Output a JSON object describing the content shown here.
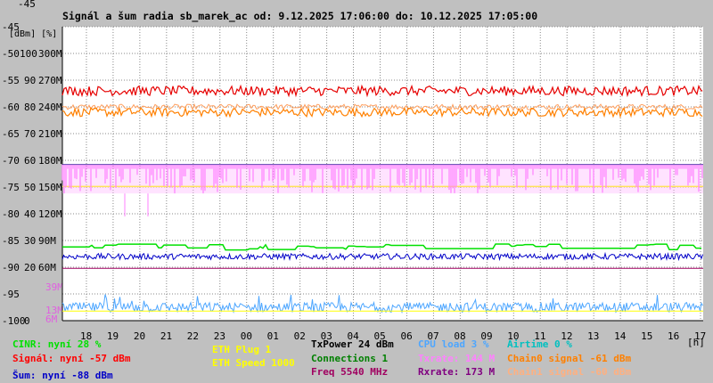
{
  "chart_data": {
    "type": "line",
    "title": "Signál a šum radia sb_marek_ac od: 9.12.2025 17:06:00 do: 10.12.2025 17:05:00",
    "y_unit_label": "[dBm] [%]",
    "x_unit_label": "[h]",
    "x_ticks": [
      "18",
      "19",
      "20",
      "21",
      "22",
      "23",
      "00",
      "01",
      "02",
      "03",
      "04",
      "05",
      "06",
      "07",
      "08",
      "09",
      "10",
      "11",
      "12",
      "13",
      "14",
      "15",
      "16",
      "17"
    ],
    "x_range_hours": [
      17.1,
      41.1
    ],
    "y_axis": {
      "dbm_ticks": [
        -45,
        -50,
        -55,
        -60,
        -65,
        -70,
        -75,
        -80,
        -85,
        -90,
        -95,
        -100
      ],
      "percent_ticks": [
        "",
        "100",
        "90",
        "80",
        "70",
        "60",
        "50",
        "40",
        "30",
        "20",
        "",
        "0"
      ],
      "rate_ticks": [
        "",
        "300M",
        "270M",
        "240M",
        "210M",
        "180M",
        "150M",
        "120M",
        "90M",
        "60M",
        "",
        ""
      ],
      "ylim_dbm": [
        -100,
        -45
      ]
    },
    "rate_small_ticks": [
      "39M",
      "13M",
      "6M"
    ],
    "series": [
      {
        "name": "Signál",
        "key": "signal",
        "color": "#e60000",
        "base": -57,
        "spread": 1.2
      },
      {
        "name": "Chain0 signal",
        "key": "chain0",
        "color": "#ff8000",
        "base": -61,
        "spread": 1.0
      },
      {
        "name": "Chain1 signal",
        "key": "chain1",
        "color": "#ffa060",
        "base": -60,
        "spread": 0.8
      },
      {
        "name": "Šum",
        "key": "noise",
        "color": "#0000c8",
        "base": -88,
        "spread": 0.6
      },
      {
        "name": "CINR",
        "key": "cinr",
        "color": "#00e000",
        "base": 28,
        "unit": "percent"
      },
      {
        "name": "Txrate",
        "key": "txrate",
        "color": "#ff80ff",
        "base": 144,
        "unit": "Mbps"
      },
      {
        "name": "Rxrate",
        "key": "rxrate",
        "color": "#800080",
        "base": 173,
        "unit": "Mbps"
      },
      {
        "name": "CPU load",
        "key": "cpu",
        "color": "#4da6ff",
        "base": 3,
        "unit": "percent"
      },
      {
        "name": "ETH Speed",
        "key": "ethspeed",
        "color": "#ffff00",
        "base": 1000,
        "unit": "Mbps"
      }
    ]
  },
  "legend": {
    "cinr": "CINR: nyní 28 %",
    "signal": "Signál: nyní -57 dBm",
    "noise": "Šum: nyní -88 dBm",
    "eth_plug": "ETH Plug 1",
    "eth_speed": "ETH Speed 1000",
    "txpower": "TxPower 24 dBm",
    "connections": "Connections 1",
    "freq": "Freq 5540 MHz",
    "cpu": "CPU load 3 %",
    "txrate": "Txrate: 144 M",
    "rxrate": "Rxrate: 173 M",
    "airtime": "Airtime 0 %",
    "chain0": "Chain0 signal -61 dBm",
    "chain1": "Chain1 signal -60 dBm"
  },
  "colors": {
    "cinr": "#00e000",
    "signal": "#ff0000",
    "noise": "#0000c8",
    "eth": "#ffff00",
    "txpower": "#000000",
    "connections": "#008000",
    "freq": "#a00060",
    "cpu": "#4da6ff",
    "txrate": "#ff80ff",
    "rxrate": "#800080",
    "airtime": "#00c0c0",
    "chain0": "#ff8000",
    "chain1": "#ffb080"
  }
}
